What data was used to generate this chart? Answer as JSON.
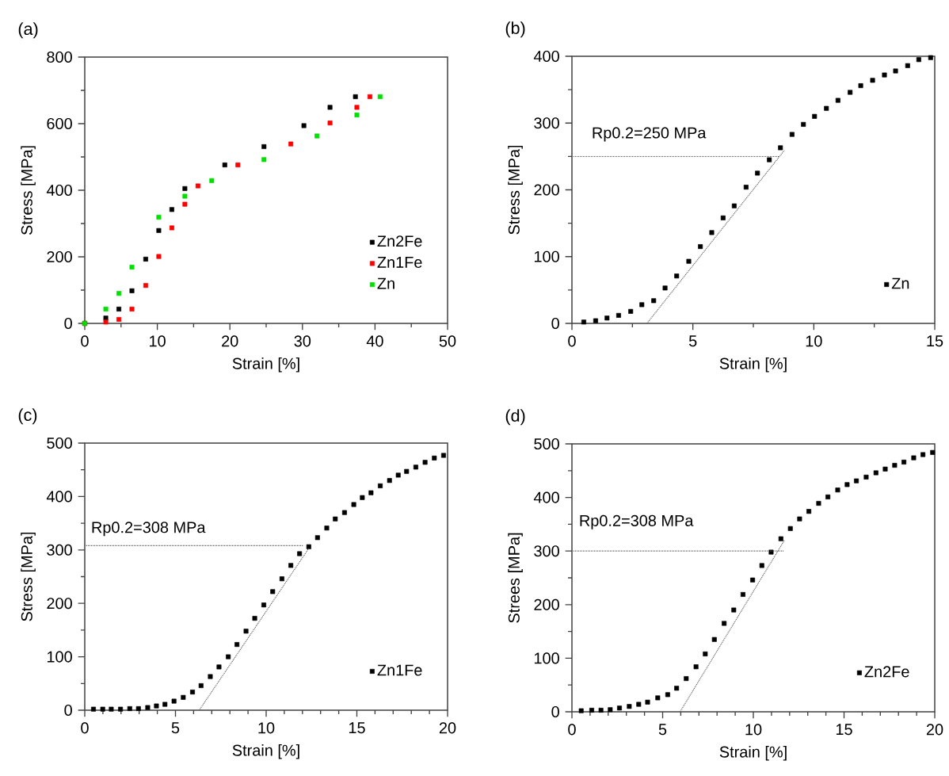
{
  "chart_data": [
    {
      "type": "scatter",
      "title": "(a)",
      "xlabel": "Strain [%]",
      "ylabel": "Stress [MPa]",
      "xlim": [
        0,
        50
      ],
      "ylim": [
        0,
        800
      ],
      "xticks": [
        0,
        10,
        20,
        30,
        40,
        50
      ],
      "yticks": [
        0,
        200,
        400,
        600,
        800
      ],
      "legend": "bottom right",
      "marker": "square",
      "series": [
        {
          "name": "Zn2Fe",
          "color": "#000000",
          "x": [
            0,
            2.9,
            4.7,
            6.5,
            8.4,
            10.2,
            12,
            13.8,
            19.3,
            24.7,
            30.2,
            33.8,
            37.3
          ],
          "values": [
            0,
            16,
            43,
            98,
            193,
            279,
            342,
            405,
            476,
            531,
            594,
            649,
            681
          ]
        },
        {
          "name": "Zn1Fe",
          "color": "#ff0000",
          "x": [
            0,
            2.9,
            4.7,
            6.5,
            8.4,
            10.2,
            12,
            13.8,
            15.6,
            21.1,
            28.4,
            33.8,
            37.5,
            39.3
          ],
          "values": [
            0,
            4,
            12,
            43,
            114,
            201,
            287,
            358,
            413,
            476,
            539,
            602,
            649,
            681
          ]
        },
        {
          "name": "Zn",
          "color": "#00e000",
          "x": [
            0,
            2.9,
            4.7,
            6.5,
            10.2,
            13.8,
            17.5,
            24.7,
            32,
            37.5,
            40.7
          ],
          "values": [
            0,
            43,
            90,
            169,
            319,
            382,
            429,
            492,
            563,
            626,
            681
          ]
        }
      ]
    },
    {
      "type": "scatter",
      "title": "(b)",
      "xlabel": "Strain [%]",
      "ylabel": "Stress [MPa]",
      "xlim": [
        0,
        15
      ],
      "ylim": [
        0,
        400
      ],
      "xticks": [
        0,
        5,
        10,
        15
      ],
      "yticks": [
        0,
        100,
        200,
        300,
        400
      ],
      "legend": "bottom right",
      "marker": "square",
      "annotations": [
        "Rp0.2=250 MPa"
      ],
      "series": [
        {
          "name": "Zn",
          "color": "#000000",
          "x": [
            0.49,
            0.98,
            1.45,
            1.93,
            2.43,
            2.89,
            3.38,
            3.85,
            4.33,
            4.83,
            5.31,
            5.78,
            6.25,
            6.71,
            7.2,
            7.67,
            8.16,
            8.62,
            9.1,
            9.57,
            10.03,
            10.52,
            11.0,
            11.5,
            11.94,
            12.43,
            12.92,
            13.38,
            13.88,
            14.34,
            14.83
          ],
          "values": [
            2,
            4,
            8,
            12,
            18,
            28,
            34,
            53,
            71,
            93,
            115,
            136,
            158,
            176,
            204,
            225,
            245,
            263,
            283,
            298,
            310,
            322,
            334,
            346,
            356,
            364,
            372,
            378,
            386,
            395,
            398
          ]
        },
        {
          "type": "line",
          "color": "#555555",
          "line_style": "dotted",
          "marker": "none",
          "x": [
            3.1,
            8.78
          ],
          "values": [
            0,
            259
          ]
        },
        {
          "type": "line",
          "color": "#555555",
          "line_style": "dotted",
          "marker": "none",
          "x": [
            0,
            8.56
          ],
          "values": [
            250,
            250
          ]
        }
      ]
    },
    {
      "type": "scatter",
      "title": "(c)",
      "xlabel": "Strain [%]",
      "ylabel": "Stress [MPa]",
      "xlim": [
        0,
        20
      ],
      "ylim": [
        0,
        500
      ],
      "xticks": [
        0,
        5,
        10,
        15,
        20
      ],
      "yticks": [
        0,
        100,
        200,
        300,
        400,
        500
      ],
      "legend": "bottom right",
      "marker": "square",
      "annotations": [
        "Rp0.2=308 MPa"
      ],
      "series": [
        {
          "name": "Zn1Fe",
          "color": "#000000",
          "x": [
            0.48,
            0.99,
            1.46,
            1.97,
            2.48,
            2.96,
            3.47,
            3.95,
            4.42,
            4.92,
            5.43,
            5.94,
            6.41,
            6.92,
            7.4,
            7.91,
            8.39,
            8.89,
            9.37,
            9.87,
            10.36,
            10.87,
            11.36,
            11.84,
            12.35,
            12.83,
            13.34,
            13.81,
            14.32,
            14.83,
            15.3,
            15.78,
            16.29,
            16.8,
            17.28,
            17.74,
            18.25,
            18.76,
            19.27,
            19.78
          ],
          "values": [
            2,
            2,
            2,
            2,
            3,
            3,
            5,
            8,
            11,
            17,
            24,
            34,
            46,
            63,
            81,
            100,
            123,
            148,
            172,
            197,
            222,
            246,
            271,
            293,
            306,
            323,
            341,
            358,
            370,
            385,
            398,
            407,
            420,
            430,
            440,
            447,
            455,
            464,
            472,
            477
          ]
        },
        {
          "type": "line",
          "color": "#555555",
          "line_style": "dotted",
          "marker": "none",
          "x": [
            6.31,
            12.35
          ],
          "values": [
            0,
            303
          ]
        },
        {
          "type": "line",
          "color": "#555555",
          "line_style": "dotted",
          "marker": "none",
          "x": [
            0,
            12.06
          ],
          "values": [
            308,
            308
          ]
        }
      ]
    },
    {
      "type": "scatter",
      "title": "(d)",
      "xlabel": "Strain [%]",
      "ylabel": "Strees [MPa]",
      "xlim": [
        0,
        20
      ],
      "ylim": [
        0,
        500
      ],
      "xticks": [
        0,
        5,
        10,
        15,
        20
      ],
      "yticks": [
        0,
        100,
        200,
        300,
        400,
        500
      ],
      "legend": "bottom right",
      "marker": "square",
      "annotations": [
        "Rp0.2=308 MPa"
      ],
      "series": [
        {
          "name": "Zn2Fe",
          "color": "#000000",
          "x": [
            0.51,
            1.09,
            1.6,
            2.11,
            2.62,
            3.16,
            3.68,
            4.17,
            4.73,
            5.28,
            5.77,
            6.3,
            6.84,
            7.35,
            7.85,
            8.39,
            8.92,
            9.43,
            9.96,
            10.47,
            10.98,
            11.52,
            12.04,
            12.55,
            13.06,
            13.6,
            14.11,
            14.65,
            15.17,
            15.68,
            16.22,
            16.76,
            17.27,
            17.79,
            18.3,
            18.84,
            19.35,
            19.88
          ],
          "values": [
            2,
            3,
            3,
            4,
            7,
            10,
            14,
            18,
            26,
            32,
            44,
            62,
            84,
            108,
            135,
            165,
            190,
            219,
            246,
            273,
            298,
            323,
            342,
            360,
            374,
            389,
            401,
            414,
            424,
            431,
            438,
            446,
            453,
            460,
            466,
            474,
            480,
            484
          ]
        },
        {
          "type": "line",
          "color": "#555555",
          "line_style": "dotted",
          "marker": "none",
          "x": [
            5.96,
            11.71
          ],
          "values": [
            0,
            320
          ]
        },
        {
          "type": "line",
          "color": "#555555",
          "line_style": "dotted",
          "marker": "none",
          "x": [
            0,
            11.7
          ],
          "values": [
            300,
            300
          ]
        }
      ]
    }
  ]
}
